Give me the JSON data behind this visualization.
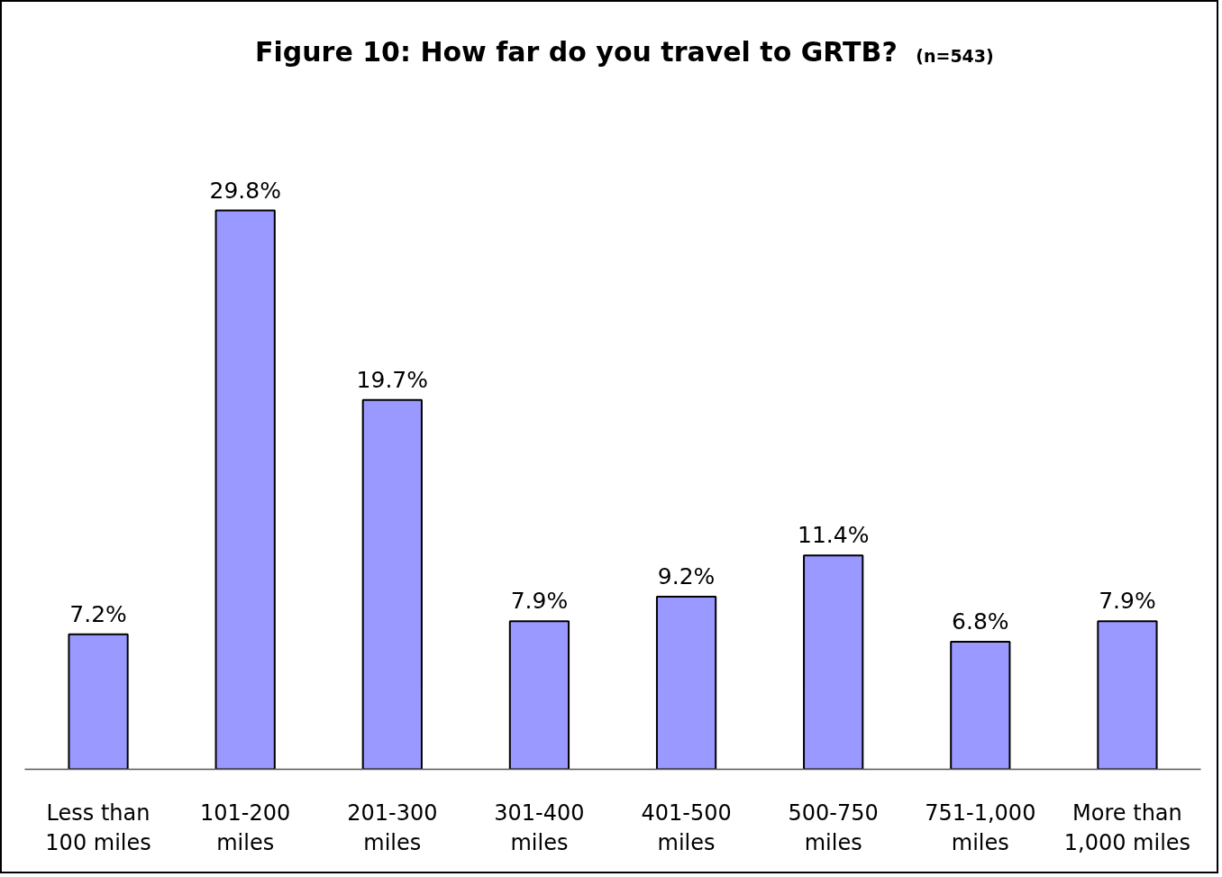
{
  "chart_data": {
    "type": "bar",
    "title": "Figure 10:  How far do you travel to GRTB?",
    "subtitle": "(n=543)",
    "categories": [
      "Less than 100 miles",
      "101-200 miles",
      "201-300 miles",
      "301-400 miles",
      "401-500 miles",
      "500-750 miles",
      "751-1,000 miles",
      "More than 1,000 miles"
    ],
    "values": [
      7.2,
      29.8,
      19.7,
      7.9,
      9.2,
      11.4,
      6.8,
      7.9
    ],
    "value_labels": [
      "7.2%",
      "29.8%",
      "19.7%",
      "7.9%",
      "9.2%",
      "11.4%",
      "6.8%",
      "7.9%"
    ],
    "color": "#9999ff"
  }
}
